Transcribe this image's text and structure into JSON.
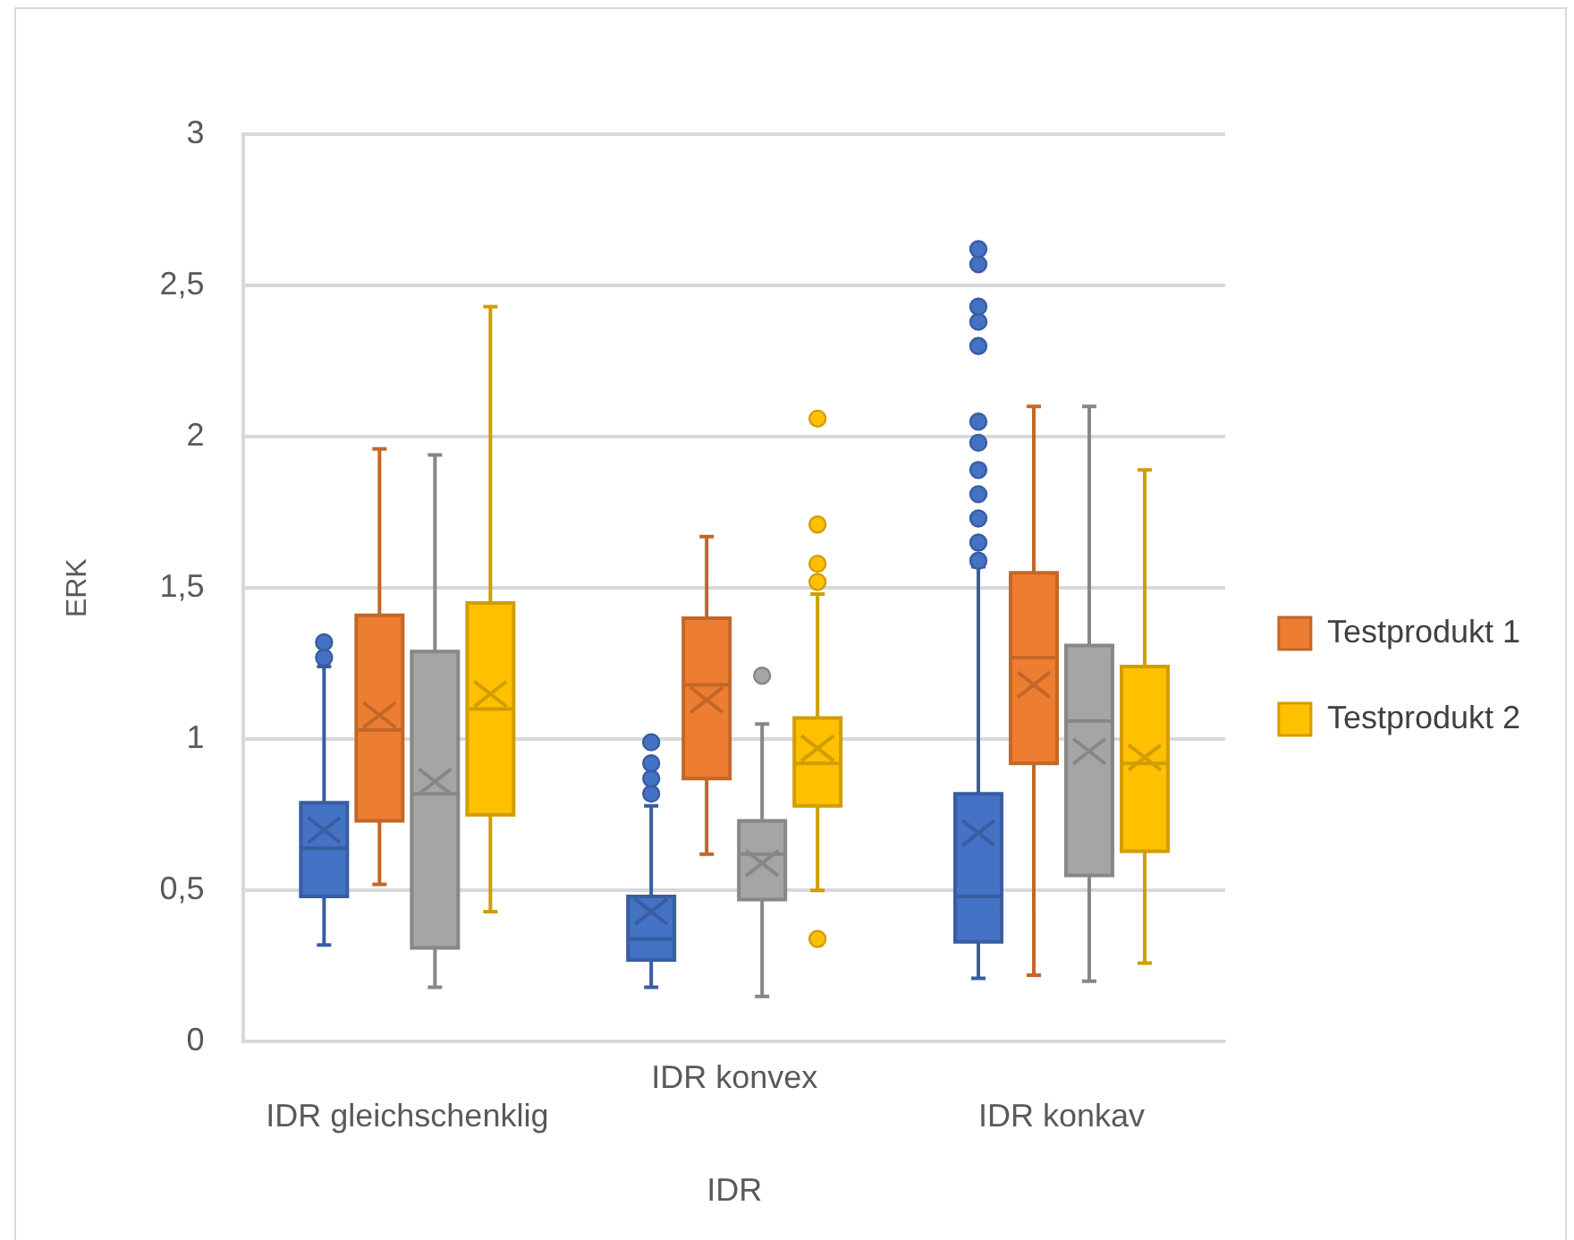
{
  "chart_data": {
    "type": "box",
    "xlabel": "IDR",
    "ylabel": "ERK",
    "categories": [
      "IDR gleichschenklig",
      "IDR konvex",
      "IDR konkav"
    ],
    "ylim": [
      0,
      3
    ],
    "yticks": [
      0,
      {
        "value": 0.5,
        "label": "0,5"
      },
      1,
      {
        "value": 1.5,
        "label": "1,5"
      },
      2,
      {
        "value": 2.5,
        "label": "2,5"
      },
      3
    ],
    "grid": "y",
    "legend": "right",
    "series": [
      {
        "color": "#4472c4",
        "boxes": [
          {
            "low": 0.32,
            "q1": 0.48,
            "median": 0.64,
            "q3": 0.79,
            "high": 1.24,
            "mean": 0.7,
            "outliers": [
              1.27,
              1.32
            ]
          },
          {
            "low": 0.18,
            "q1": 0.27,
            "median": 0.34,
            "q3": 0.48,
            "high": 0.78,
            "mean": 0.43,
            "outliers": [
              0.82,
              0.87,
              0.92,
              0.99
            ]
          },
          {
            "low": 0.21,
            "q1": 0.33,
            "median": 0.48,
            "q3": 0.82,
            "high": 1.57,
            "mean": 0.69,
            "outliers": [
              1.59,
              1.65,
              1.73,
              1.81,
              1.89,
              1.98,
              2.05,
              2.3,
              2.38,
              2.43,
              2.57,
              2.62
            ]
          }
        ]
      },
      {
        "name": "Testprodukt 1",
        "color": "#ed7d31",
        "boxes": [
          {
            "low": 0.52,
            "q1": 0.73,
            "median": 1.03,
            "q3": 1.41,
            "high": 1.96,
            "mean": 1.08
          },
          {
            "low": 0.62,
            "q1": 0.87,
            "median": 1.18,
            "q3": 1.4,
            "high": 1.67,
            "mean": 1.13
          },
          {
            "low": 0.22,
            "q1": 0.92,
            "median": 1.27,
            "q3": 1.55,
            "high": 2.1,
            "mean": 1.18
          }
        ]
      },
      {
        "color": "#a5a5a5",
        "boxes": [
          {
            "low": 0.18,
            "q1": 0.31,
            "median": 0.82,
            "q3": 1.29,
            "high": 1.94,
            "mean": 0.86
          },
          {
            "low": 0.15,
            "q1": 0.47,
            "median": 0.62,
            "q3": 0.73,
            "high": 1.05,
            "mean": 0.59,
            "outliers": [
              1.21
            ]
          },
          {
            "low": 0.2,
            "q1": 0.55,
            "median": 1.06,
            "q3": 1.31,
            "high": 2.1,
            "mean": 0.96
          }
        ]
      },
      {
        "name": "Testprodukt 2",
        "color": "#ffc000",
        "boxes": [
          {
            "low": 0.43,
            "q1": 0.75,
            "median": 1.1,
            "q3": 1.45,
            "high": 2.43,
            "mean": 1.15
          },
          {
            "low": 0.5,
            "q1": 0.78,
            "median": 0.92,
            "q3": 1.07,
            "high": 1.48,
            "mean": 0.97,
            "outliers": [
              0.34,
              1.52,
              1.58,
              1.71,
              2.06
            ]
          },
          {
            "low": 0.26,
            "q1": 0.63,
            "median": 0.92,
            "q3": 1.24,
            "high": 1.89,
            "mean": 0.94
          }
        ]
      }
    ]
  }
}
